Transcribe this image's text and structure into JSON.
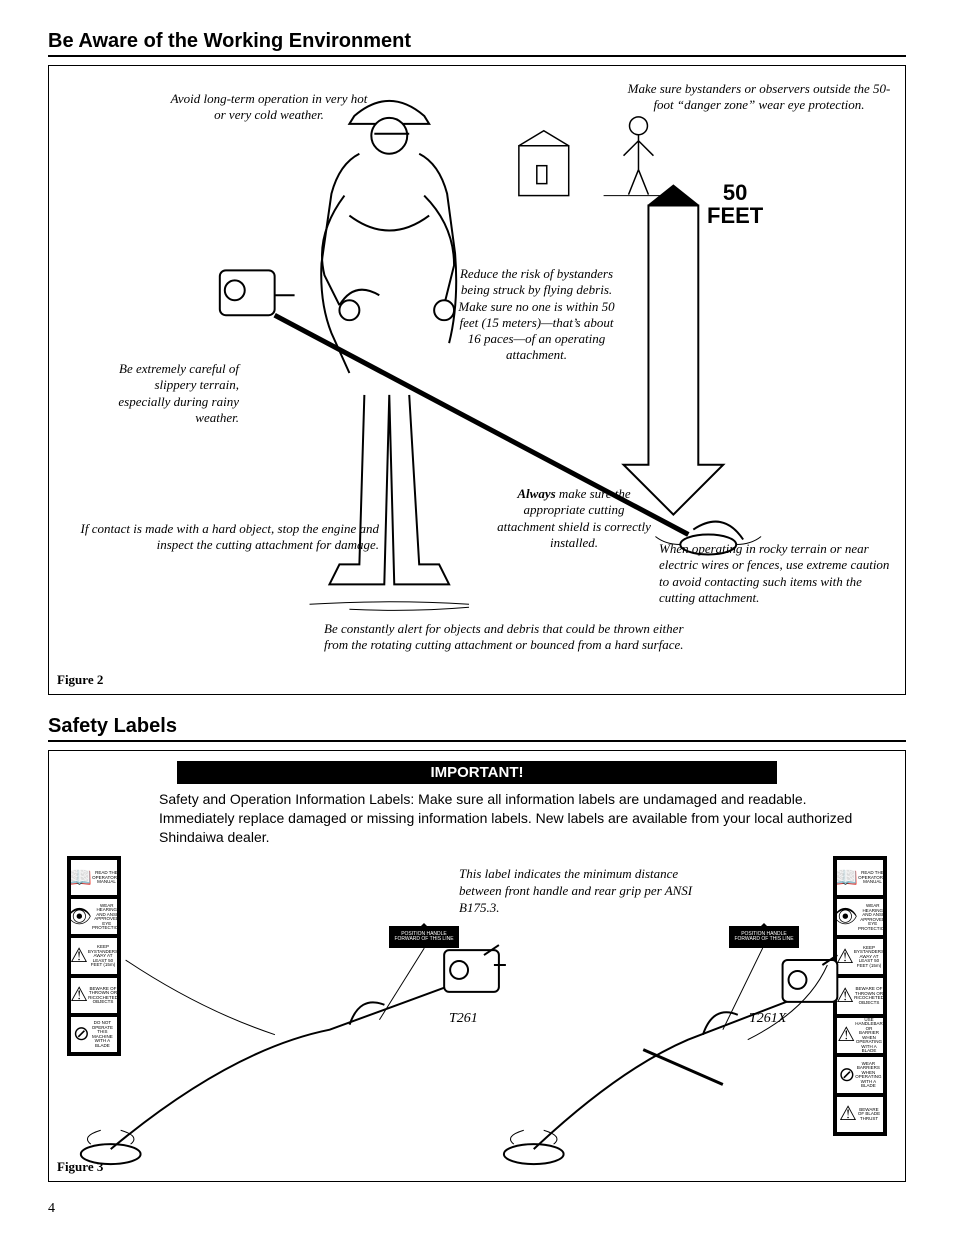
{
  "page_number": "4",
  "section1": {
    "heading": "Be Aware of the Working Environment",
    "figure_label": "Figure 2",
    "distance_big": "50\nFEET",
    "callouts": {
      "avoid_weather": "Avoid long-term operation in very hot or very cold weather.",
      "bystanders_eye": "Make sure bystanders or observers outside the 50-foot “danger zone” wear eye protection.",
      "reduce_risk": "Reduce the risk of bystanders being struck by flying debris. Make sure no one is within 50 feet (15 meters)—that’s about 16 paces—of an operating attachment.",
      "slippery": "Be extremely careful of slippery terrain, especially during rainy weather.",
      "shield": "Always make sure the appropriate cutting attachment shield is correctly installed.",
      "shield_bold": "Always",
      "hard_object": "If contact is made with a hard object, stop the engine and inspect the cutting attachment for damage.",
      "rocky": "When operating in rocky terrain or near electric wires or fences, use extreme caution to avoid contacting such items with the cutting attachment.",
      "alert": "Be constantly alert for objects and debris that could be thrown either from the rotating cutting attachment or bounced from a hard surface."
    }
  },
  "section2": {
    "heading": "Safety Labels",
    "figure_label": "Figure 3",
    "important_title": "IMPORTANT!",
    "important_body": "Safety and Operation Information Labels: Make sure all information labels are undamaged and readable. Immediately replace damaged or missing information labels. New labels are available from your local authorized Shindaiwa dealer.",
    "ansi_note": "This label indicates the minimum distance between front handle and rear grip per ANSI B175.3.",
    "model_left": "T261",
    "model_right": "T261X",
    "mini_tag_text": "POSITION HANDLE FORWARD OF THIS LINE",
    "left_strip_icons": [
      {
        "glyph": "📖",
        "caption": "READ THE OPERATOR'S MANUAL"
      },
      {
        "glyph": "👁",
        "caption": "WEAR HEARING AND ANSI APPROVED EYE PROTECTION"
      },
      {
        "glyph": "⚠",
        "caption": "KEEP BYSTANDERS AWAY AT LEAST 50 FEET (15m)"
      },
      {
        "glyph": "⚠",
        "caption": "BEWARE OF THROWN OR RICOCHETED OBJECTS"
      },
      {
        "glyph": "⊘",
        "caption": "DO NOT OPERATE THIS MACHINE WITH A BLADE"
      }
    ],
    "right_strip_icons": [
      {
        "glyph": "📖",
        "caption": "READ THE OPERATOR'S MANUAL"
      },
      {
        "glyph": "👁",
        "caption": "WEAR HEARING AND ANSI APPROVED EYE PROTECTION"
      },
      {
        "glyph": "⚠",
        "caption": "KEEP BYSTANDERS AWAY AT LEAST 50 FEET (15m)"
      },
      {
        "glyph": "⚠",
        "caption": "BEWARE OF THROWN OR RICOCHETED OBJECTS"
      },
      {
        "glyph": "⚠",
        "caption": "USE HANDLEBAR OR BARRIER WHEN OPERATING WITH A BLADE"
      },
      {
        "glyph": "⊘",
        "caption": "WEAR BARRIERS WHEN OPERATING WITH A BLADE"
      },
      {
        "glyph": "⚠",
        "caption": "BEWARE OF BLADE THRUST"
      }
    ]
  },
  "colors": {
    "text": "#000000",
    "background": "#ffffff",
    "rule": "#000000"
  }
}
